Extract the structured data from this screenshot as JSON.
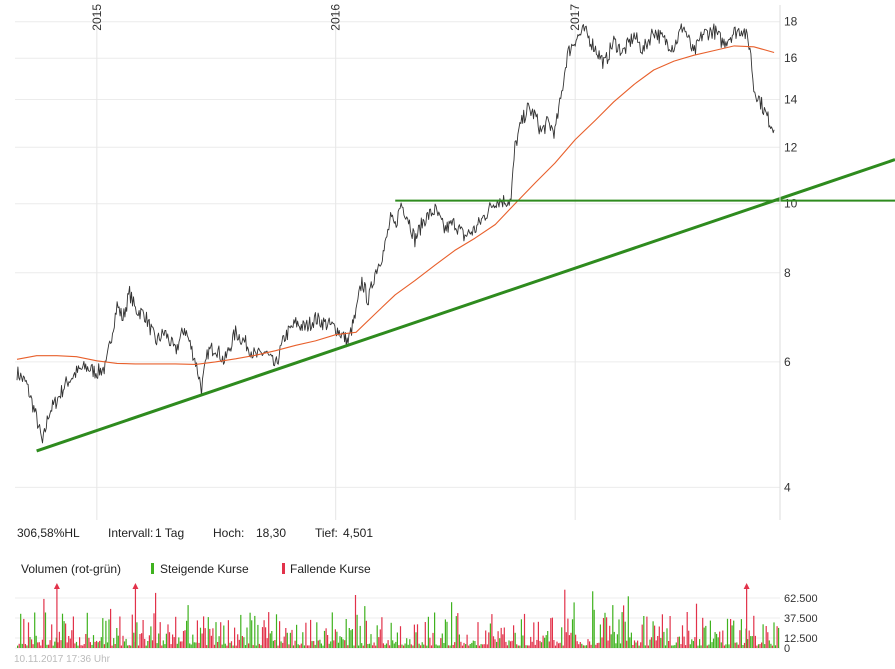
{
  "chart_data": {
    "type": "line",
    "price_panel": {
      "y_axis": {
        "scale": "log",
        "range": [
          3.6,
          19.0
        ],
        "ticks": [
          "4",
          "6",
          "8",
          "10",
          "12",
          "14",
          "16",
          "18"
        ]
      },
      "x_axis": {
        "ticks": [
          "2015",
          "2016",
          "2017"
        ]
      },
      "series": [
        {
          "key": "price",
          "color": "#333333",
          "points": [
            [
              "2014-09-01",
              5.8
            ],
            [
              "2014-09-15",
              5.6
            ],
            [
              "2014-10-01",
              5.0
            ],
            [
              "2014-10-10",
              4.6
            ],
            [
              "2014-10-20",
              5.1
            ],
            [
              "2014-11-01",
              5.3
            ],
            [
              "2014-11-15",
              5.6
            ],
            [
              "2014-12-01",
              5.8
            ],
            [
              "2014-12-15",
              5.9
            ],
            [
              "2015-01-01",
              5.8
            ],
            [
              "2015-01-15",
              5.9
            ],
            [
              "2015-02-01",
              7.2
            ],
            [
              "2015-02-10",
              6.9
            ],
            [
              "2015-02-20",
              7.5
            ],
            [
              "2015-03-01",
              7.1
            ],
            [
              "2015-03-15",
              7.0
            ],
            [
              "2015-04-01",
              6.4
            ],
            [
              "2015-04-15",
              6.6
            ],
            [
              "2015-05-01",
              6.2
            ],
            [
              "2015-05-15",
              6.7
            ],
            [
              "2015-06-01",
              6.0
            ],
            [
              "2015-06-10",
              5.5
            ],
            [
              "2015-06-20",
              6.2
            ],
            [
              "2015-07-01",
              6.3
            ],
            [
              "2015-07-15",
              6.0
            ],
            [
              "2015-08-01",
              6.6
            ],
            [
              "2015-08-15",
              6.4
            ],
            [
              "2015-09-01",
              6.1
            ],
            [
              "2015-09-15",
              6.2
            ],
            [
              "2015-10-01",
              5.9
            ],
            [
              "2015-10-15",
              6.5
            ],
            [
              "2015-11-01",
              6.8
            ],
            [
              "2015-11-15",
              6.7
            ],
            [
              "2015-12-01",
              6.9
            ],
            [
              "2015-12-15",
              6.8
            ],
            [
              "2016-01-01",
              6.7
            ],
            [
              "2016-01-20",
              6.4
            ],
            [
              "2016-02-01",
              7.0
            ],
            [
              "2016-02-10",
              7.8
            ],
            [
              "2016-02-20",
              7.3
            ],
            [
              "2016-03-01",
              8.0
            ],
            [
              "2016-03-15",
              8.6
            ],
            [
              "2016-03-25",
              9.5
            ],
            [
              "2016-04-01",
              9.3
            ],
            [
              "2016-04-10",
              10.0
            ],
            [
              "2016-04-20",
              9.6
            ],
            [
              "2016-05-01",
              8.9
            ],
            [
              "2016-05-15",
              9.5
            ],
            [
              "2016-06-01",
              9.8
            ],
            [
              "2016-06-15",
              9.2
            ],
            [
              "2016-07-01",
              9.4
            ],
            [
              "2016-07-15",
              9.0
            ],
            [
              "2016-08-01",
              9.2
            ],
            [
              "2016-08-15",
              9.6
            ],
            [
              "2016-09-01",
              10.1
            ],
            [
              "2016-09-15",
              10.1
            ],
            [
              "2016-09-25",
              10.1
            ],
            [
              "2016-10-01",
              12.0
            ],
            [
              "2016-10-10",
              12.9
            ],
            [
              "2016-10-20",
              13.6
            ],
            [
              "2016-11-01",
              13.3
            ],
            [
              "2016-11-10",
              12.6
            ],
            [
              "2016-11-20",
              13.0
            ],
            [
              "2016-12-01",
              12.6
            ],
            [
              "2016-12-10",
              14.0
            ],
            [
              "2016-12-20",
              16.2
            ],
            [
              "2017-01-01",
              17.0
            ],
            [
              "2017-01-15",
              17.5
            ],
            [
              "2017-02-01",
              16.5
            ],
            [
              "2017-02-15",
              15.7
            ],
            [
              "2017-03-01",
              16.9
            ],
            [
              "2017-03-15",
              16.3
            ],
            [
              "2017-04-01",
              17.2
            ],
            [
              "2017-04-15",
              16.4
            ],
            [
              "2017-05-01",
              17.5
            ],
            [
              "2017-05-15",
              17.0
            ],
            [
              "2017-06-01",
              16.6
            ],
            [
              "2017-06-15",
              17.8
            ],
            [
              "2017-07-01",
              16.2
            ],
            [
              "2017-07-15",
              17.3
            ],
            [
              "2017-08-01",
              17.5
            ],
            [
              "2017-08-15",
              16.8
            ],
            [
              "2017-09-01",
              17.4
            ],
            [
              "2017-09-15",
              17.6
            ],
            [
              "2017-09-25",
              16.6
            ],
            [
              "2017-10-01",
              14.5
            ],
            [
              "2017-10-10",
              14.0
            ],
            [
              "2017-10-20",
              13.3
            ],
            [
              "2017-11-01",
              12.7
            ]
          ]
        },
        {
          "key": "moving_average",
          "color": "#e8602c",
          "points": [
            [
              "2014-09-01",
              6.05
            ],
            [
              "2014-10-01",
              6.12
            ],
            [
              "2014-11-01",
              6.12
            ],
            [
              "2014-12-01",
              6.1
            ],
            [
              "2015-01-01",
              6.02
            ],
            [
              "2015-02-01",
              5.97
            ],
            [
              "2015-03-01",
              5.96
            ],
            [
              "2015-04-01",
              5.96
            ],
            [
              "2015-05-01",
              5.96
            ],
            [
              "2015-06-01",
              5.95
            ],
            [
              "2015-07-01",
              6.0
            ],
            [
              "2015-08-01",
              6.06
            ],
            [
              "2015-09-01",
              6.13
            ],
            [
              "2015-10-01",
              6.22
            ],
            [
              "2015-11-01",
              6.33
            ],
            [
              "2015-12-01",
              6.42
            ],
            [
              "2016-01-01",
              6.55
            ],
            [
              "2016-02-01",
              6.6
            ],
            [
              "2016-03-01",
              7.0
            ],
            [
              "2016-04-01",
              7.45
            ],
            [
              "2016-05-01",
              7.8
            ],
            [
              "2016-06-01",
              8.2
            ],
            [
              "2016-07-01",
              8.6
            ],
            [
              "2016-08-01",
              8.95
            ],
            [
              "2016-09-01",
              9.35
            ],
            [
              "2016-10-01",
              10.0
            ],
            [
              "2016-11-01",
              10.7
            ],
            [
              "2016-12-01",
              11.4
            ],
            [
              "2017-01-01",
              12.3
            ],
            [
              "2017-02-01",
              13.1
            ],
            [
              "2017-03-01",
              13.9
            ],
            [
              "2017-04-01",
              14.7
            ],
            [
              "2017-05-01",
              15.4
            ],
            [
              "2017-06-01",
              15.85
            ],
            [
              "2017-07-01",
              16.15
            ],
            [
              "2017-08-01",
              16.4
            ],
            [
              "2017-09-01",
              16.65
            ],
            [
              "2017-10-01",
              16.6
            ],
            [
              "2017-11-01",
              16.3
            ]
          ]
        }
      ],
      "trendlines": [
        {
          "key": "support-trendline",
          "color": "#2e8b1e",
          "from": [
            "2014-10-01",
            4.5
          ],
          "to": [
            "2017-11-01",
            10.1
          ],
          "extend_right": true
        },
        {
          "key": "horizontal-resistance",
          "color": "#2e8b1e",
          "from": [
            "2016-04-01",
            10.1
          ],
          "to": [
            "2017-11-01",
            10.1
          ],
          "extend_right": true
        }
      ]
    },
    "info_bar": {
      "change": "306,58%HL",
      "interval_label": "Intervall:",
      "interval_value": "1 Tag",
      "high_label": "Hoch:",
      "high_value": "18,30",
      "low_label": "Tief:",
      "low_value": "4,501"
    },
    "volume_panel": {
      "title": "Volumen (rot-grün)",
      "legend": [
        {
          "label": "Steigende Kurse",
          "color": "#3fb21f"
        },
        {
          "label": "Fallende Kurse",
          "color": "#e2324a"
        }
      ],
      "y_axis": {
        "range": [
          0,
          75000
        ],
        "ticks": [
          "62.500",
          "37.500",
          "12.500",
          "0"
        ]
      },
      "up_color": "#3fb21f",
      "down_color": "#e2324a",
      "spike_markers": [
        "2014-11-01",
        "2015-03-01",
        "2017-09-20"
      ]
    },
    "footer": "10.11.2017 17:36 Uhr"
  }
}
